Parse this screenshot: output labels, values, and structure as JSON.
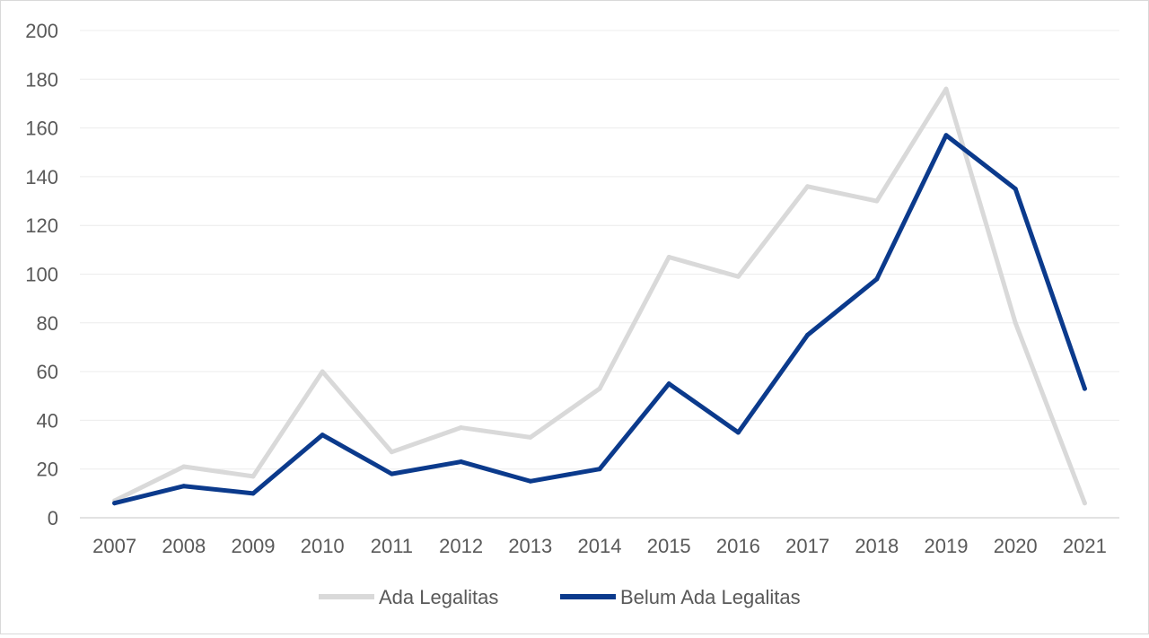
{
  "chart_data": {
    "type": "line",
    "title": "",
    "xlabel": "",
    "ylabel": "",
    "x": [
      "2007",
      "2008",
      "2009",
      "2010",
      "2011",
      "2012",
      "2013",
      "2014",
      "2015",
      "2016",
      "2017",
      "2018",
      "2019",
      "2020",
      "2021"
    ],
    "ylim": [
      0,
      200
    ],
    "yticks": [
      0,
      20,
      40,
      60,
      80,
      100,
      120,
      140,
      160,
      180,
      200
    ],
    "grid": true,
    "legend_position": "bottom",
    "series": [
      {
        "name": "Ada Legalitas",
        "color": "#d9d9d9",
        "values": [
          7,
          21,
          17,
          60,
          27,
          37,
          33,
          53,
          107,
          99,
          136,
          130,
          176,
          80,
          6
        ]
      },
      {
        "name": "Belum Ada Legalitas",
        "color": "#0b3a8c",
        "values": [
          6,
          13,
          10,
          34,
          18,
          23,
          15,
          20,
          55,
          35,
          75,
          98,
          157,
          135,
          53
        ]
      }
    ]
  }
}
